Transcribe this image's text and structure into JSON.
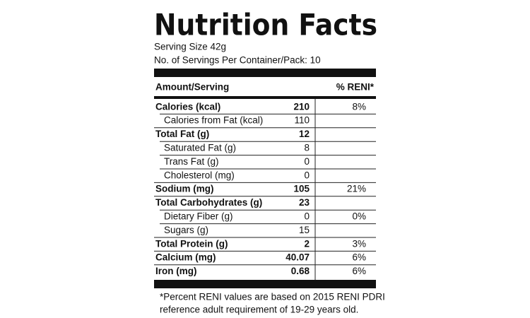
{
  "title": "Nutrition Facts",
  "serving_size": "Serving Size 42g",
  "servings": "No. of Servings Per Container/Pack: 10",
  "header": {
    "amount": "Amount/Serving",
    "percent": "% RENI*"
  },
  "rows": [
    {
      "label": "Calories (kcal)",
      "amount": "210",
      "percent": "8%",
      "bold": true
    },
    {
      "label": "Calories from Fat (kcal)",
      "amount": "110",
      "indent": true
    },
    {
      "label": "Total Fat (g)",
      "amount": "12",
      "bold": true
    },
    {
      "label": "Saturated Fat (g)",
      "amount": "8",
      "indent": true
    },
    {
      "label": "Trans Fat (g)",
      "amount": "0",
      "indent": true
    },
    {
      "label": "Cholesterol (mg)",
      "amount": "0",
      "indent": true
    },
    {
      "label": "Sodium (mg)",
      "amount": "105",
      "percent": "21%",
      "bold": true
    },
    {
      "label": "Total Carbohydrates (g)",
      "amount": "23",
      "bold": true
    },
    {
      "label": "Dietary Fiber (g)",
      "amount": "0",
      "percent": "0%",
      "indent": true
    },
    {
      "label": "Sugars (g)",
      "amount": "15",
      "indent": true
    },
    {
      "label": "Total Protein (g)",
      "amount": "2",
      "percent": "3%",
      "bold": true
    },
    {
      "label": "Calcium (mg)",
      "amount": "40.07",
      "percent": "6%",
      "bold": true
    },
    {
      "label": "Iron (mg)",
      "amount": "0.68",
      "percent": "6%",
      "bold": true
    }
  ],
  "footnote": [
    "*Percent RENI values are based on 2015 RENI PDRI",
    "reference adult requirement of 19-29 years old."
  ]
}
